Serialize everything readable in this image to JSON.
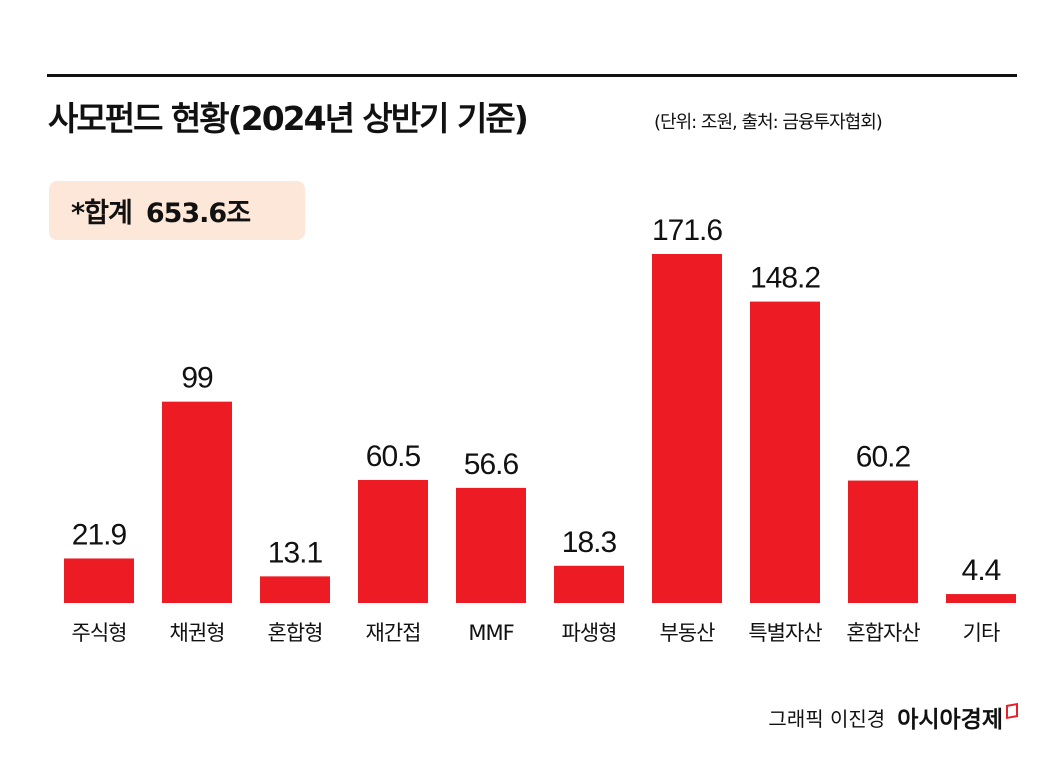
{
  "header": {
    "title": "사모펀드 현황(2024년 상반기 기준)",
    "subtitle": "(단위: 조원, 출처: 금융투자협회)",
    "total_label": "*합계",
    "total_value": "653.6조"
  },
  "footer": {
    "credit": "그래픽 이진경",
    "brand": "아시아경제"
  },
  "chart_data": {
    "type": "bar",
    "title": "사모펀드 현황(2024년 상반기 기준)",
    "unit": "조원",
    "categories": [
      "주식형",
      "채권형",
      "혼합형",
      "재간접",
      "MMF",
      "파생형",
      "부동산",
      "특별자산",
      "혼합자산",
      "기타"
    ],
    "values": [
      21.9,
      99,
      13.1,
      60.5,
      56.6,
      18.3,
      171.6,
      148.2,
      60.2,
      4.4
    ],
    "value_labels": [
      "21.9",
      "99",
      "13.1",
      "60.5",
      "56.6",
      "18.3",
      "171.6",
      "148.2",
      "60.2",
      "4.4"
    ],
    "bar_color": "#ed1c24",
    "ylim": [
      0,
      171.6
    ],
    "grid": false,
    "legend": "none"
  }
}
